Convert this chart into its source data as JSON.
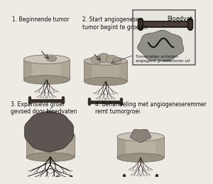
{
  "fig_bg": "#eeebe5",
  "text_color": "#111111",
  "labels": {
    "1": "1. Beginnende tumor",
    "2": "2. Start angiogenese,\ntumor begint te groeien",
    "3": "3. Expansieve groei\ngevoed door bloedvaten",
    "4": "4. Behandeling met angiogeneseremmer\nremt tumorgroei"
  },
  "inset_title": "Bloedvat",
  "inset_caption": "Tumorcellen scheiden\nangiogene groeifactoren uit",
  "inset_bg": "#e8e5df",
  "inset_border": "#666666",
  "arrow_color": "#333333",
  "cyl_body": "#b8b0a0",
  "cyl_top": "#d0c8bc",
  "cyl_side_dark": "#989080",
  "cyl_edge": "#787068",
  "tumor_dark": "#5a5248",
  "tumor_mid": "#7a7268",
  "tumor_light": "#9a928a",
  "vessel_color": "#282020",
  "vessel_h_color": "#383028"
}
